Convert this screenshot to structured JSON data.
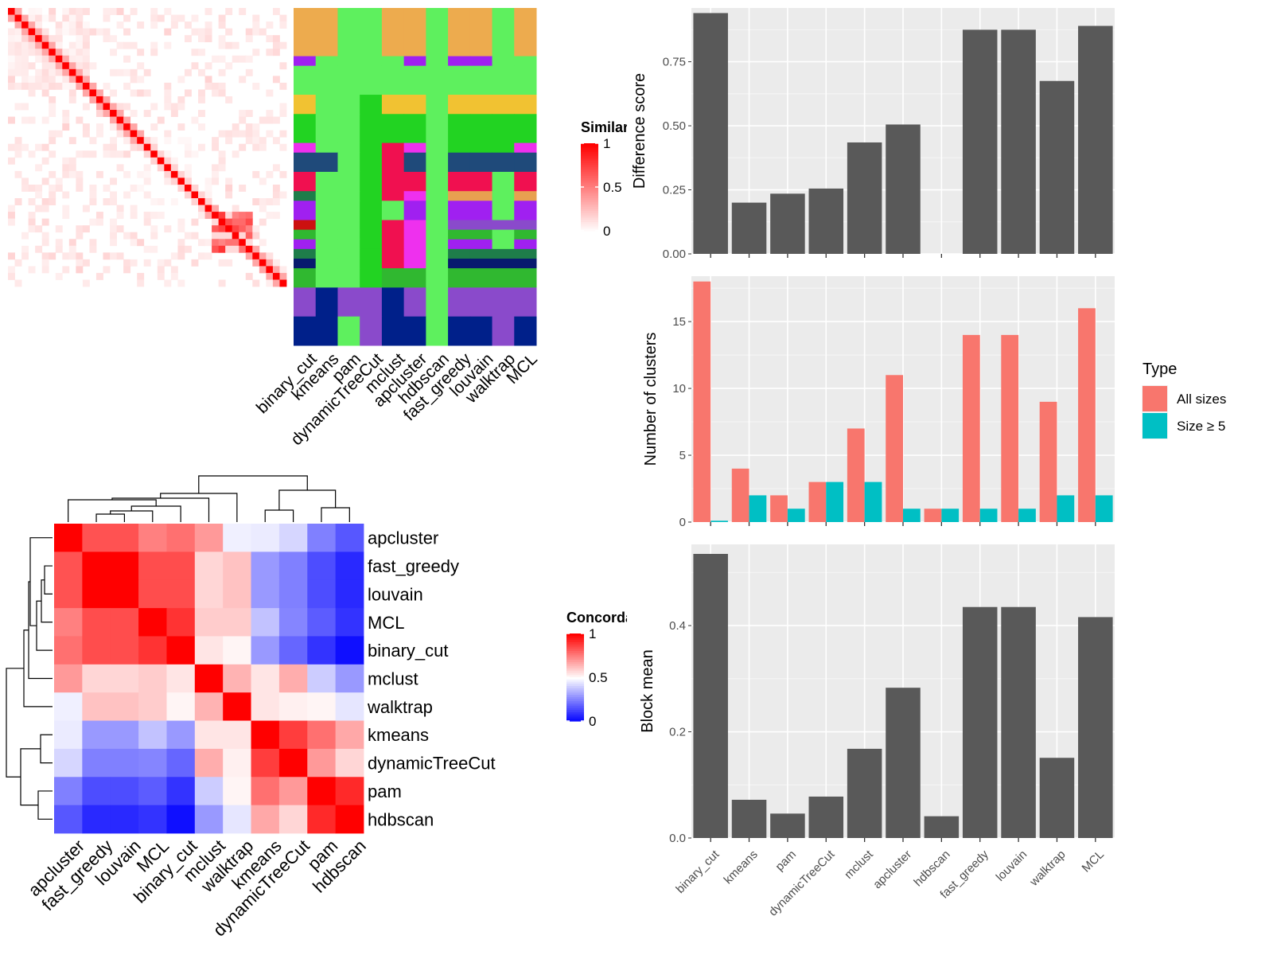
{
  "chart_data": [
    {
      "type": "heatmap",
      "title": "",
      "legend_title": "Similarity",
      "legend_ticks": [
        "1",
        "0.5",
        "0"
      ],
      "legend_tick_values": [
        1,
        0.5,
        0
      ],
      "n_rows": 41,
      "diagonal_value": 1,
      "blocks": [
        {
          "start": 30,
          "end": 35,
          "value": 0.8
        }
      ]
    },
    {
      "type": "heatmap",
      "title": "",
      "columns": [
        "binary_cut",
        "kmeans",
        "pam",
        "dynamicTreeCut",
        "mclust",
        "apcluster",
        "hdbscan",
        "fast_greedy",
        "louvain",
        "walktrap",
        "MCL"
      ],
      "palette": [
        "#EDAB4E",
        "#A020F0",
        "#5EF05E",
        "#F1C232",
        "#22D322",
        "#EE30EE",
        "#1F4A7A",
        "#F01050",
        "#E8A050",
        "#CC1010",
        "#1E7D4A",
        "#081A6E",
        "#30B830",
        "#8A4ACB",
        "#00208A"
      ],
      "row_heights": [
        5,
        1,
        3,
        2,
        3,
        1,
        2,
        2,
        1,
        2,
        1,
        1,
        1,
        1,
        1,
        2,
        3,
        3
      ],
      "cells": [
        [
          0,
          0,
          2,
          2,
          0,
          0,
          2,
          0,
          0,
          2,
          0
        ],
        [
          1,
          2,
          2,
          2,
          2,
          1,
          2,
          1,
          1,
          2,
          2
        ],
        [
          2,
          2,
          2,
          2,
          2,
          2,
          2,
          2,
          2,
          2,
          2
        ],
        [
          3,
          2,
          2,
          4,
          3,
          3,
          2,
          3,
          3,
          3,
          3
        ],
        [
          4,
          2,
          2,
          4,
          4,
          4,
          2,
          4,
          4,
          4,
          4
        ],
        [
          5,
          2,
          2,
          4,
          7,
          5,
          2,
          4,
          4,
          4,
          5
        ],
        [
          6,
          6,
          2,
          4,
          7,
          6,
          2,
          6,
          6,
          6,
          6
        ],
        [
          7,
          2,
          2,
          4,
          7,
          7,
          2,
          7,
          7,
          2,
          7
        ],
        [
          10,
          2,
          2,
          4,
          7,
          5,
          2,
          8,
          8,
          2,
          8
        ],
        [
          1,
          2,
          2,
          4,
          2,
          1,
          2,
          1,
          1,
          2,
          1
        ],
        [
          9,
          2,
          2,
          4,
          7,
          5,
          2,
          13,
          13,
          13,
          13
        ],
        [
          12,
          2,
          2,
          4,
          7,
          5,
          2,
          12,
          12,
          2,
          12
        ],
        [
          1,
          2,
          2,
          4,
          7,
          5,
          2,
          1,
          1,
          2,
          1
        ],
        [
          10,
          2,
          2,
          4,
          7,
          5,
          2,
          10,
          10,
          10,
          10
        ],
        [
          11,
          2,
          2,
          4,
          7,
          5,
          2,
          11,
          11,
          11,
          11
        ],
        [
          12,
          2,
          2,
          4,
          12,
          12,
          2,
          12,
          12,
          12,
          12
        ],
        [
          13,
          14,
          13,
          13,
          14,
          13,
          2,
          13,
          13,
          13,
          13
        ],
        [
          14,
          14,
          2,
          13,
          14,
          14,
          2,
          14,
          14,
          13,
          14
        ]
      ]
    },
    {
      "type": "heatmap",
      "title": "",
      "legend_title": "Concordance",
      "legend_ticks": [
        "1",
        "0.5",
        "0"
      ],
      "legend_tick_values": [
        1,
        0.5,
        0
      ],
      "rows": [
        "apcluster",
        "fast_greedy",
        "louvain",
        "MCL",
        "binary_cut",
        "mclust",
        "walktrap",
        "kmeans",
        "dynamicTreeCut",
        "pam",
        "hdbscan"
      ],
      "columns": [
        "apcluster",
        "fast_greedy",
        "louvain",
        "MCL",
        "binary_cut",
        "mclust",
        "walktrap",
        "kmeans",
        "dynamicTreeCut",
        "pam",
        "hdbscan"
      ],
      "values": [
        [
          1.0,
          0.84,
          0.84,
          0.75,
          0.78,
          0.7,
          0.47,
          0.46,
          0.42,
          0.25,
          0.17
        ],
        [
          0.84,
          1.0,
          1.0,
          0.85,
          0.85,
          0.58,
          0.62,
          0.3,
          0.25,
          0.15,
          0.08
        ],
        [
          0.84,
          1.0,
          1.0,
          0.85,
          0.85,
          0.58,
          0.62,
          0.3,
          0.25,
          0.15,
          0.08
        ],
        [
          0.75,
          0.85,
          0.85,
          1.0,
          0.9,
          0.6,
          0.6,
          0.38,
          0.26,
          0.18,
          0.1
        ],
        [
          0.78,
          0.85,
          0.85,
          0.9,
          1.0,
          0.55,
          0.52,
          0.3,
          0.2,
          0.1,
          0.03
        ],
        [
          0.7,
          0.58,
          0.58,
          0.6,
          0.55,
          1.0,
          0.65,
          0.55,
          0.66,
          0.4,
          0.3
        ],
        [
          0.47,
          0.62,
          0.62,
          0.6,
          0.52,
          0.65,
          1.0,
          0.55,
          0.53,
          0.52,
          0.45
        ],
        [
          0.46,
          0.3,
          0.3,
          0.38,
          0.3,
          0.55,
          0.55,
          1.0,
          0.88,
          0.78,
          0.67
        ],
        [
          0.42,
          0.25,
          0.25,
          0.26,
          0.2,
          0.66,
          0.53,
          0.88,
          1.0,
          0.7,
          0.58
        ],
        [
          0.25,
          0.15,
          0.15,
          0.18,
          0.1,
          0.4,
          0.52,
          0.78,
          0.7,
          1.0,
          0.92
        ],
        [
          0.17,
          0.08,
          0.08,
          0.1,
          0.03,
          0.3,
          0.45,
          0.67,
          0.58,
          0.92,
          1.0
        ]
      ]
    },
    {
      "type": "bar",
      "title": "",
      "categories": [
        "binary_cut",
        "kmeans",
        "pam",
        "dynamicTreeCut",
        "mclust",
        "apcluster",
        "hdbscan",
        "fast_greedy",
        "louvain",
        "walktrap",
        "MCL"
      ],
      "values": [
        0.94,
        0.2,
        0.235,
        0.255,
        0.435,
        0.505,
        0.0,
        0.875,
        0.875,
        0.675,
        0.89
      ],
      "xlabel": "",
      "ylabel": "Difference score",
      "ylim": [
        0,
        0.96
      ],
      "yticks": [
        0,
        0.25,
        0.5,
        0.75
      ],
      "ytick_labels": [
        "0.00",
        "0.25",
        "0.50",
        "0.75"
      ],
      "bar_color": "#595959",
      "grid": true
    },
    {
      "type": "bar",
      "title": "",
      "categories": [
        "binary_cut",
        "kmeans",
        "pam",
        "dynamicTreeCut",
        "mclust",
        "apcluster",
        "hdbscan",
        "fast_greedy",
        "louvain",
        "walktrap",
        "MCL"
      ],
      "series": [
        {
          "name": "All sizes",
          "color": "#F8766D",
          "values": [
            18,
            4,
            2,
            3,
            7,
            11,
            1,
            14,
            14,
            9,
            16
          ]
        },
        {
          "name": "Size ≥ 5",
          "color": "#00BFC4",
          "values": [
            0.1,
            2,
            1,
            3,
            3,
            1,
            1,
            1,
            1,
            2,
            2
          ]
        }
      ],
      "xlabel": "",
      "ylabel": "Number of clusters",
      "ylim": [
        0,
        18.4
      ],
      "yticks": [
        0,
        5,
        10,
        15
      ],
      "ytick_labels": [
        "0",
        "5",
        "10",
        "15"
      ],
      "legend_title": "Type",
      "legend_position": "right",
      "grid": true
    },
    {
      "type": "bar",
      "title": "",
      "categories": [
        "binary_cut",
        "kmeans",
        "pam",
        "dynamicTreeCut",
        "mclust",
        "apcluster",
        "hdbscan",
        "fast_greedy",
        "louvain",
        "walktrap",
        "MCL"
      ],
      "values": [
        0.535,
        0.072,
        0.046,
        0.078,
        0.168,
        0.283,
        0.041,
        0.435,
        0.435,
        0.151,
        0.416
      ],
      "xlabel": "",
      "ylabel": "Block mean",
      "ylim": [
        0,
        0.553
      ],
      "yticks": [
        0,
        0.2,
        0.4
      ],
      "ytick_labels": [
        "0.0",
        "0.2",
        "0.4"
      ],
      "bar_color": "#595959",
      "grid": true
    }
  ]
}
